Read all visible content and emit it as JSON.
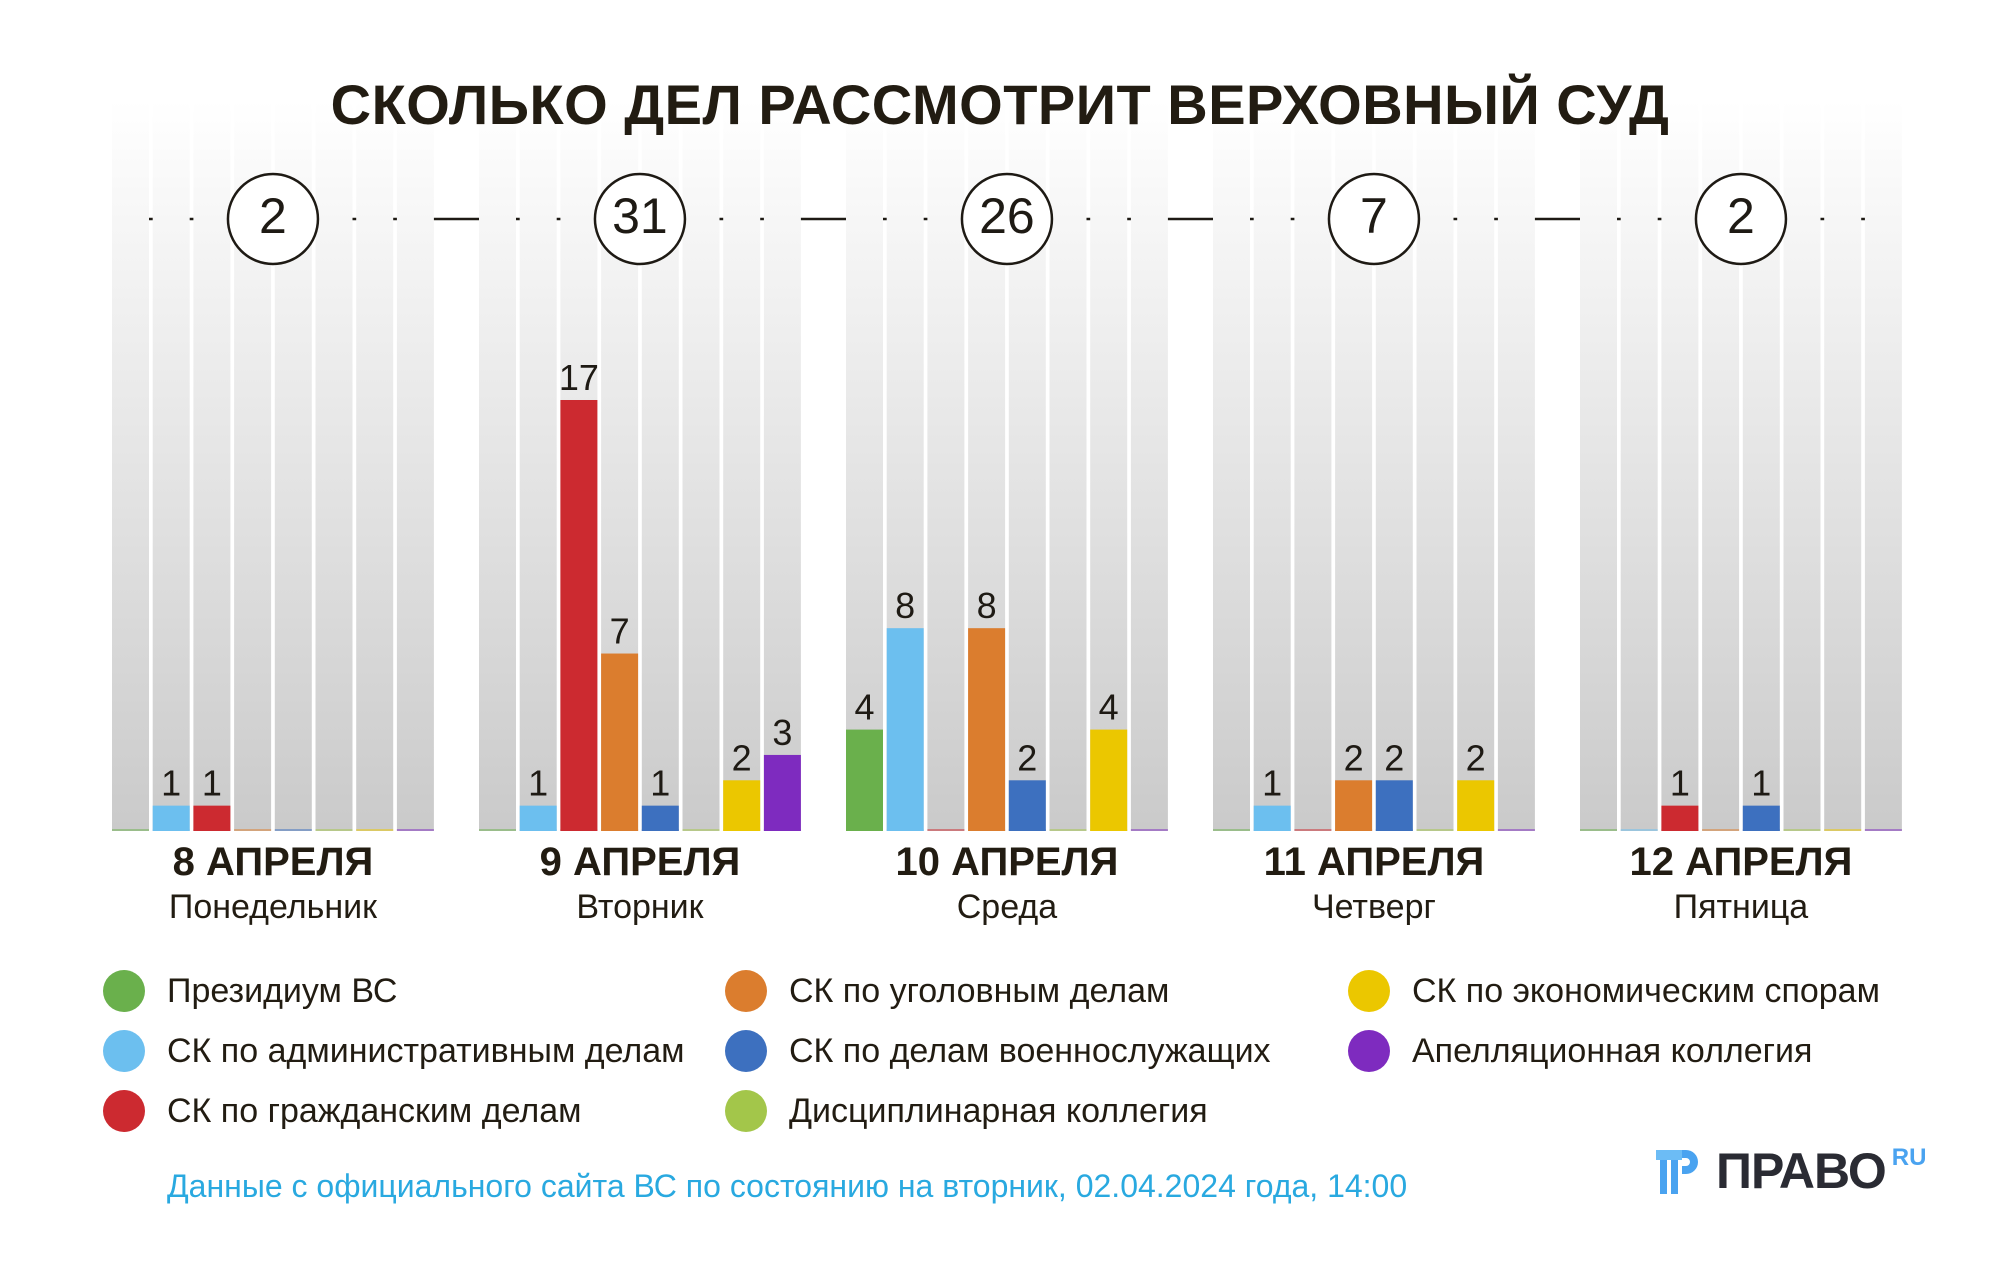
{
  "chart_data": {
    "type": "bar",
    "title": "СКОЛЬКО ДЕЛ РАССМОТРИТ ВЕРХОВНЫЙ СУД",
    "categories": [
      {
        "date": "8 АПРЕЛЯ",
        "weekday": "Понедельник",
        "total": 2
      },
      {
        "date": "9 АПРЕЛЯ",
        "weekday": "Вторник",
        "total": 31
      },
      {
        "date": "10 АПРЕЛЯ",
        "weekday": "Среда",
        "total": 26
      },
      {
        "date": "11 АПРЕЛЯ",
        "weekday": "Четверг",
        "total": 7
      },
      {
        "date": "12 АПРЕЛЯ",
        "weekday": "Пятница",
        "total": 2
      }
    ],
    "series": [
      {
        "name": "Президиум ВС",
        "color": "#6ab04c",
        "values": [
          0,
          0,
          4,
          0,
          0
        ]
      },
      {
        "name": "СК по административным делам",
        "color": "#6cbfef",
        "values": [
          1,
          1,
          8,
          1,
          0
        ]
      },
      {
        "name": "СК по гражданским делам",
        "color": "#cc2a30",
        "values": [
          1,
          17,
          0,
          0,
          1
        ]
      },
      {
        "name": "СК по уголовным делам",
        "color": "#db7d2e",
        "values": [
          0,
          7,
          8,
          2,
          0
        ]
      },
      {
        "name": "СК по делам военнослужащих",
        "color": "#3d70bf",
        "values": [
          0,
          1,
          2,
          2,
          1
        ]
      },
      {
        "name": "Дисциплинарная коллегия",
        "color": "#a3c64a",
        "values": [
          0,
          0,
          0,
          0,
          0
        ]
      },
      {
        "name": "СК по экономическим спорам",
        "color": "#ebc700",
        "values": [
          0,
          2,
          4,
          2,
          0
        ]
      },
      {
        "name": "Апелляционная коллегия",
        "color": "#7e2bbf",
        "values": [
          0,
          3,
          0,
          0,
          0
        ]
      }
    ],
    "ylim": [
      0,
      17
    ],
    "legend": "bottom",
    "grid": false
  },
  "footer": "Данные с официального сайта ВС по состоянию на вторник, 02.04.2024 года, 14:00",
  "logo": {
    "text": "ПРАВО",
    "suffix": "RU"
  }
}
